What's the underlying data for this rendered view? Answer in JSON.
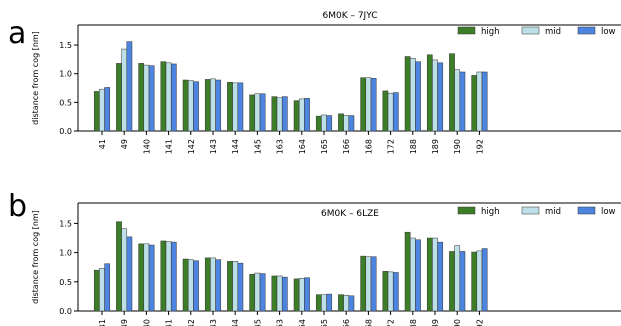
{
  "colors": {
    "high": "#3e7d28",
    "mid": "#bcdfe8",
    "low": "#4c84e0"
  },
  "chart_data": [
    {
      "panel": "a",
      "type": "bar",
      "title": "6M0K – 7JYC",
      "xlabel": "",
      "ylabel": "distance from cog [nm]",
      "ylim": [
        0,
        1.85
      ],
      "yticks": [
        "0.0",
        "0.5",
        "1.0",
        "1.5"
      ],
      "legend_position": "top-right",
      "categories": [
        "41",
        "49",
        "140",
        "141",
        "142",
        "143",
        "144",
        "145",
        "163",
        "164",
        "165",
        "166",
        "168",
        "172",
        "188",
        "189",
        "190",
        "192"
      ],
      "series": [
        {
          "name": "high",
          "values": [
            0.69,
            1.18,
            1.18,
            1.21,
            0.89,
            0.9,
            0.85,
            0.63,
            0.6,
            0.53,
            0.26,
            0.3,
            0.93,
            0.7,
            1.3,
            1.33,
            1.35,
            0.97
          ]
        },
        {
          "name": "mid",
          "values": [
            0.73,
            1.43,
            1.15,
            1.19,
            0.88,
            0.91,
            0.84,
            0.65,
            0.58,
            0.56,
            0.28,
            0.27,
            0.93,
            0.66,
            1.27,
            1.24,
            1.07,
            1.03
          ]
        },
        {
          "name": "low",
          "values": [
            0.76,
            1.56,
            1.14,
            1.17,
            0.86,
            0.89,
            0.84,
            0.65,
            0.6,
            0.57,
            0.27,
            0.27,
            0.92,
            0.67,
            1.21,
            1.19,
            1.03,
            1.03
          ]
        }
      ]
    },
    {
      "panel": "b",
      "type": "bar",
      "title": "6M0K – 6LZE",
      "xlabel": "",
      "ylabel": "distance from cog [nm]",
      "ylim": [
        0,
        1.85
      ],
      "yticks": [
        "0.0",
        "0.5",
        "1.0",
        "1.5"
      ],
      "legend_position": "top-right",
      "categories": [
        "41",
        "49",
        "140",
        "141",
        "142",
        "143",
        "144",
        "145",
        "163",
        "164",
        "165",
        "166",
        "168",
        "172",
        "188",
        "189",
        "190",
        "192"
      ],
      "series": [
        {
          "name": "high",
          "values": [
            0.7,
            1.53,
            1.15,
            1.2,
            0.89,
            0.91,
            0.85,
            0.63,
            0.6,
            0.55,
            0.28,
            0.28,
            0.94,
            0.68,
            1.35,
            1.25,
            1.02,
            1.01
          ]
        },
        {
          "name": "mid",
          "values": [
            0.73,
            1.41,
            1.15,
            1.19,
            0.88,
            0.91,
            0.85,
            0.65,
            0.6,
            0.56,
            0.28,
            0.27,
            0.93,
            0.67,
            1.25,
            1.25,
            1.12,
            1.03
          ]
        },
        {
          "name": "low",
          "values": [
            0.81,
            1.27,
            1.13,
            1.18,
            0.86,
            0.88,
            0.82,
            0.64,
            0.58,
            0.57,
            0.29,
            0.26,
            0.93,
            0.66,
            1.22,
            1.18,
            1.02,
            1.07
          ]
        }
      ]
    }
  ]
}
